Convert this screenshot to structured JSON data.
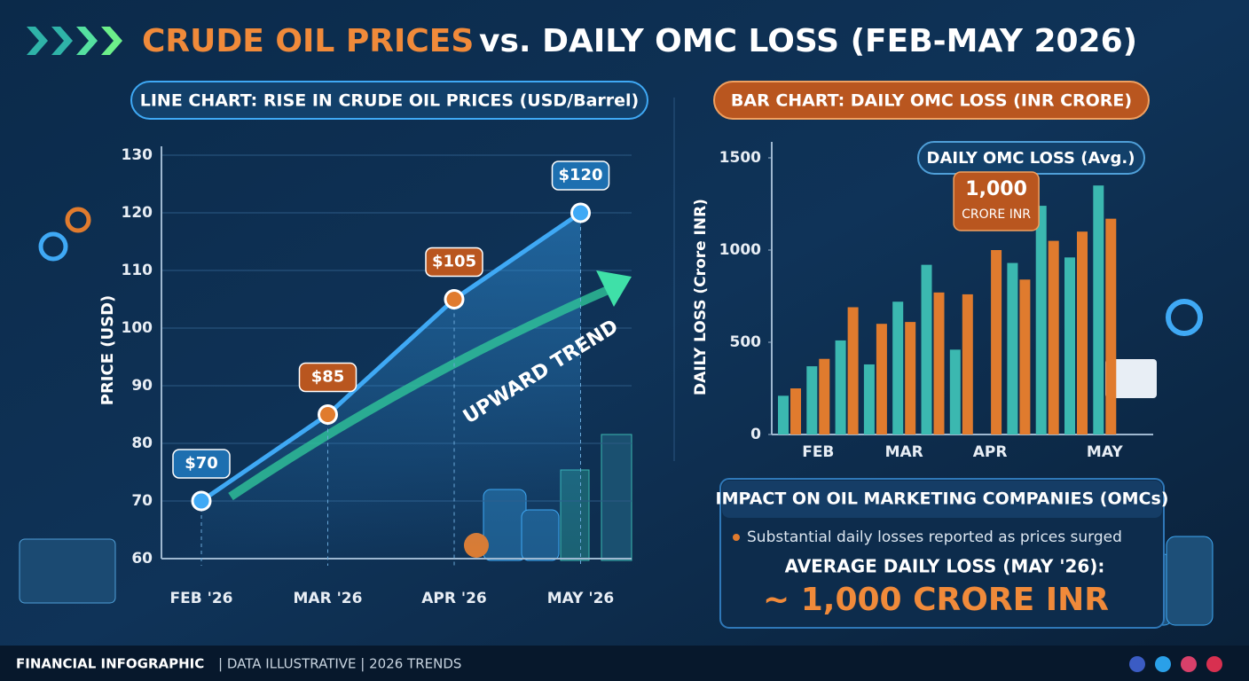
{
  "header": {
    "title_highlight": "CRUDE OIL PRICES",
    "title_rest": "vs. DAILY OMC LOSS (FEB-MAY 2026)"
  },
  "chart_data": [
    {
      "type": "line",
      "title": "LINE CHART: RISE IN CRUDE OIL PRICES (USD/Barrel)",
      "y_label": "PRICE (USD)",
      "categories": [
        "FEB '26",
        "MAR '26",
        "APR '26",
        "MAY '26"
      ],
      "values": [
        70,
        85,
        105,
        120
      ],
      "value_labels": [
        "$70",
        "$85",
        "$105",
        "$120"
      ],
      "color": "#3fa9f5",
      "ylim": [
        60,
        130
      ],
      "yticks": [
        60,
        70,
        80,
        90,
        100,
        110,
        120,
        130
      ],
      "grid": true,
      "annotation": "UPWARD TREND"
    },
    {
      "type": "bar",
      "title": "BAR CHART: DAILY OMC LOSS (INR CRORE)",
      "y_label": "DAILY LOSS (Crore INR)",
      "callout": "DAILY OMC LOSS (Avg.)",
      "categories": [
        null,
        "FEB",
        null,
        null,
        "MAR",
        null,
        null,
        "APR",
        null,
        null,
        null,
        "MAY"
      ],
      "series": [
        {
          "color": "#3bb8b0",
          "values": [
            210,
            370,
            510,
            380,
            720,
            920,
            460,
            null,
            930,
            1240,
            960,
            1350
          ]
        },
        {
          "color": "#e07b2e",
          "values": [
            250,
            410,
            690,
            600,
            610,
            770,
            760,
            1000,
            840,
            1050,
            1100,
            1170
          ],
          "value_labels": [
            null,
            null,
            null,
            null,
            null,
            null,
            null,
            "1,000",
            null,
            null,
            null,
            null
          ]
        }
      ],
      "annotation": "CRORE INR",
      "ylim": [
        0,
        1500
      ],
      "yticks": [
        0,
        500,
        1000,
        1500
      ],
      "grid": false
    }
  ],
  "impact": {
    "title": "IMPACT ON OIL MARKETING COMPANIES (OMCs)",
    "bullet": "Substantial daily losses reported as prices surged",
    "subhead": "AVERAGE DAILY LOSS (MAY '26):",
    "headline": "~ 1,000 CRORE INR"
  },
  "footer": {
    "brand": "FINANCIAL INFOGRAPHIC",
    "tags": "| DATA ILLUSTRATIVE | 2026 TRENDS"
  }
}
